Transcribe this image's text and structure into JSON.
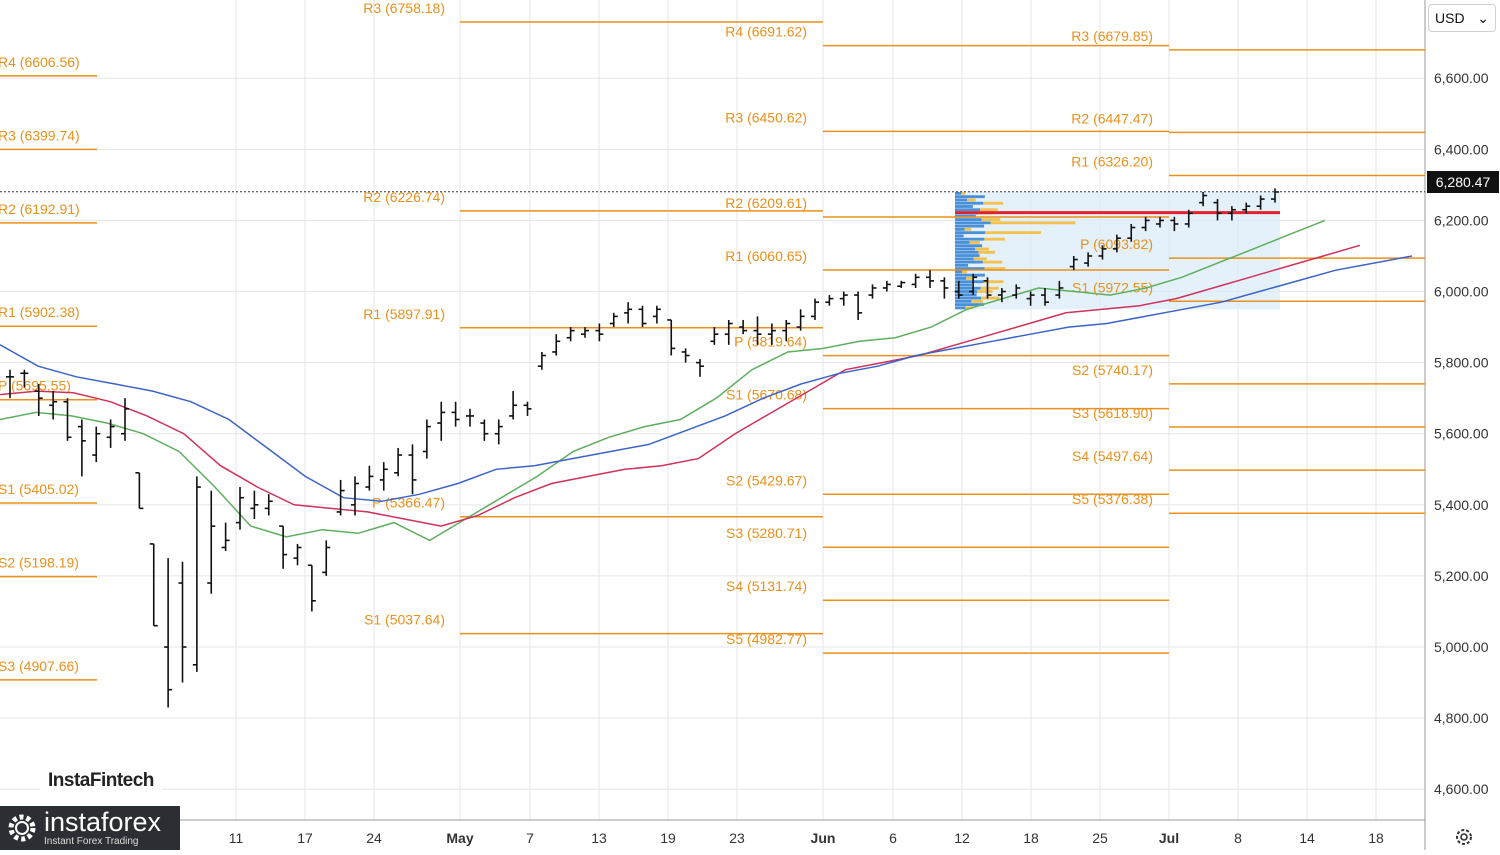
{
  "toolbar": {
    "currency": "USD",
    "currency_caret": "⌄"
  },
  "price_badge": "6,280.47",
  "current_price": 6280.47,
  "brand": {
    "watermark": "InstaFintech",
    "logo_name": "instaforex",
    "logo_tagline": "Instant Forex Trading",
    "logo_icon": "gear-icon"
  },
  "settings_icon": "settings-gear-icon",
  "colors": {
    "pivot": "#e8911c",
    "bars": "#111111",
    "ma_green": "#5fae5f",
    "ma_red": "#d0325a",
    "ma_blue": "#3c64c8",
    "volume_profile_bg": "#dcecf8",
    "vp_blue": "#4a90d9",
    "vp_yellow": "#f2c14e",
    "poc_line": "#e0232e",
    "grid": "#e6e6e6"
  },
  "chart_data": {
    "type": "bar",
    "instrument_quote": "USD",
    "ylim": [
      4550,
      6820
    ],
    "y_ticks": [
      4600,
      4800,
      5000,
      5200,
      5400,
      5600,
      5800,
      6000,
      6200,
      6400,
      6600
    ],
    "y_tick_labels": [
      "4,600.00",
      "4,800.00",
      "5,000.00",
      "5,200.00",
      "5,400.00",
      "5,600.00",
      "5,800.00",
      "6,000.00",
      "6,200.00",
      "6,400.00",
      "6,600.00"
    ],
    "x_labels": [
      "11",
      "17",
      "24",
      "May",
      "7",
      "13",
      "19",
      "23",
      "Jun",
      "6",
      "12",
      "18",
      "25",
      "Jul",
      "8",
      "14",
      "18"
    ],
    "pivot_levels": [
      {
        "period": 1,
        "label": "R4 (6606.56)",
        "value": 6606.56
      },
      {
        "period": 1,
        "label": "R3 (6399.74)",
        "value": 6399.74
      },
      {
        "period": 1,
        "label": "R2 (6192.91)",
        "value": 6192.91
      },
      {
        "period": 1,
        "label": "R1 (5902.38)",
        "value": 5902.38
      },
      {
        "period": 1,
        "label": "P (5695.55)",
        "value": 5695.55
      },
      {
        "period": 1,
        "label": "S1 (5405.02)",
        "value": 5405.02
      },
      {
        "period": 1,
        "label": "S2 (5198.19)",
        "value": 5198.19
      },
      {
        "period": 1,
        "label": "S3 (4907.66)",
        "value": 4907.66
      },
      {
        "period": 2,
        "label": "R3 (6758.18)",
        "value": 6758.18
      },
      {
        "period": 2,
        "label": "R2 (6226.74)",
        "value": 6226.74
      },
      {
        "period": 2,
        "label": "R1 (5897.91)",
        "value": 5897.91
      },
      {
        "period": 2,
        "label": "P (5366.47)",
        "value": 5366.47
      },
      {
        "period": 2,
        "label": "S1 (5037.64)",
        "value": 5037.64
      },
      {
        "period": 3,
        "label": "R4 (6691.62)",
        "value": 6691.62
      },
      {
        "period": 3,
        "label": "R3 (6450.62)",
        "value": 6450.62
      },
      {
        "period": 3,
        "label": "R2 (6209.61)",
        "value": 6209.61
      },
      {
        "period": 3,
        "label": "R1 (6060.65)",
        "value": 6060.65
      },
      {
        "period": 3,
        "label": "P (5819.64)",
        "value": 5819.64
      },
      {
        "period": 3,
        "label": "S1 (5670.68)",
        "value": 5670.68
      },
      {
        "period": 3,
        "label": "S2 (5429.67)",
        "value": 5429.67
      },
      {
        "period": 3,
        "label": "S3 (5280.71)",
        "value": 5280.71
      },
      {
        "period": 3,
        "label": "S4 (5131.74)",
        "value": 5131.74
      },
      {
        "period": 3,
        "label": "S5 (4982.77)",
        "value": 4982.77
      },
      {
        "period": 4,
        "label": "R3 (6679.85)",
        "value": 6679.85
      },
      {
        "period": 4,
        "label": "R2 (6447.47)",
        "value": 6447.47
      },
      {
        "period": 4,
        "label": "R1 (6326.20)",
        "value": 6326.2
      },
      {
        "period": 4,
        "label": "P (6093.82)",
        "value": 6093.82
      },
      {
        "period": 4,
        "label": "S1 (5972.55)",
        "value": 5972.55
      },
      {
        "period": 4,
        "label": "S2 (5740.17)",
        "value": 5740.17
      },
      {
        "period": 4,
        "label": "S3 (5618.90)",
        "value": 5618.9
      },
      {
        "period": 4,
        "label": "S4 (5497.64)",
        "value": 5497.64
      },
      {
        "period": 4,
        "label": "S5 (5376.38)",
        "value": 5376.38
      }
    ],
    "bars": [
      {
        "h": 5780,
        "l": 5700,
        "o": 5760,
        "c": 5760
      },
      {
        "h": 5780,
        "l": 5730,
        "o": 5770,
        "c": 5770
      },
      {
        "h": 5740,
        "l": 5650,
        "o": 5720,
        "c": 5700
      },
      {
        "h": 5720,
        "l": 5640,
        "o": 5680,
        "c": 5690
      },
      {
        "h": 5700,
        "l": 5580,
        "o": 5690,
        "c": 5590
      },
      {
        "h": 5640,
        "l": 5480,
        "o": 5620,
        "c": 5580
      },
      {
        "h": 5620,
        "l": 5520,
        "o": 5540,
        "c": 5600
      },
      {
        "h": 5640,
        "l": 5560,
        "o": 5590,
        "c": 5620
      },
      {
        "h": 5700,
        "l": 5580,
        "o": 5600,
        "c": 5670
      },
      {
        "h": 5490,
        "l": 5390,
        "o": 5490,
        "c": 5390
      },
      {
        "h": 5290,
        "l": 5060,
        "o": 5290,
        "c": 5060
      },
      {
        "h": 5250,
        "l": 4830,
        "o": 5000,
        "c": 4880
      },
      {
        "h": 5240,
        "l": 4900,
        "o": 5180,
        "c": 5000
      },
      {
        "h": 5480,
        "l": 4930,
        "o": 4950,
        "c": 5450
      },
      {
        "h": 5440,
        "l": 5150,
        "o": 5180,
        "c": 5340
      },
      {
        "h": 5350,
        "l": 5270,
        "o": 5280,
        "c": 5300
      },
      {
        "h": 5450,
        "l": 5330,
        "o": 5350,
        "c": 5420
      },
      {
        "h": 5440,
        "l": 5360,
        "o": 5390,
        "c": 5400
      },
      {
        "h": 5430,
        "l": 5370,
        "o": 5390,
        "c": 5410
      },
      {
        "h": 5340,
        "l": 5220,
        "o": 5340,
        "c": 5260
      },
      {
        "h": 5290,
        "l": 5230,
        "o": 5250,
        "c": 5280
      },
      {
        "h": 5230,
        "l": 5100,
        "o": 5230,
        "c": 5130
      },
      {
        "h": 5300,
        "l": 5200,
        "o": 5210,
        "c": 5280
      },
      {
        "h": 5470,
        "l": 5370,
        "o": 5380,
        "c": 5440
      },
      {
        "h": 5480,
        "l": 5370,
        "o": 5400,
        "c": 5460
      },
      {
        "h": 5510,
        "l": 5440,
        "o": 5450,
        "c": 5480
      },
      {
        "h": 5520,
        "l": 5440,
        "o": 5470,
        "c": 5500
      },
      {
        "h": 5560,
        "l": 5480,
        "o": 5490,
        "c": 5540
      },
      {
        "h": 5570,
        "l": 5430,
        "o": 5540,
        "c": 5470
      },
      {
        "h": 5640,
        "l": 5530,
        "o": 5550,
        "c": 5620
      },
      {
        "h": 5690,
        "l": 5580,
        "o": 5630,
        "c": 5660
      },
      {
        "h": 5690,
        "l": 5620,
        "o": 5660,
        "c": 5640
      },
      {
        "h": 5670,
        "l": 5620,
        "o": 5650,
        "c": 5650
      },
      {
        "h": 5640,
        "l": 5580,
        "o": 5630,
        "c": 5600
      },
      {
        "h": 5640,
        "l": 5570,
        "o": 5600,
        "c": 5620
      },
      {
        "h": 5720,
        "l": 5640,
        "o": 5650,
        "c": 5680
      },
      {
        "h": 5690,
        "l": 5650,
        "o": 5680,
        "c": 5670
      },
      {
        "h": 5830,
        "l": 5780,
        "o": 5790,
        "c": 5820
      },
      {
        "h": 5880,
        "l": 5820,
        "o": 5830,
        "c": 5860
      },
      {
        "h": 5900,
        "l": 5860,
        "o": 5870,
        "c": 5890
      },
      {
        "h": 5900,
        "l": 5870,
        "o": 5880,
        "c": 5890
      },
      {
        "h": 5910,
        "l": 5860,
        "o": 5890,
        "c": 5880
      },
      {
        "h": 5940,
        "l": 5900,
        "o": 5910,
        "c": 5930
      },
      {
        "h": 5970,
        "l": 5910,
        "o": 5940,
        "c": 5950
      },
      {
        "h": 5960,
        "l": 5900,
        "o": 5950,
        "c": 5910
      },
      {
        "h": 5960,
        "l": 5910,
        "o": 5930,
        "c": 5950
      },
      {
        "h": 5920,
        "l": 5820,
        "o": 5920,
        "c": 5840
      },
      {
        "h": 5840,
        "l": 5800,
        "o": 5830,
        "c": 5820
      },
      {
        "h": 5810,
        "l": 5760,
        "o": 5800,
        "c": 5790
      },
      {
        "h": 5900,
        "l": 5850,
        "o": 5860,
        "c": 5880
      },
      {
        "h": 5920,
        "l": 5850,
        "o": 5880,
        "c": 5910
      },
      {
        "h": 5920,
        "l": 5880,
        "o": 5900,
        "c": 5890
      },
      {
        "h": 5930,
        "l": 5850,
        "o": 5890,
        "c": 5880
      },
      {
        "h": 5910,
        "l": 5850,
        "o": 5880,
        "c": 5890
      },
      {
        "h": 5920,
        "l": 5860,
        "o": 5890,
        "c": 5910
      },
      {
        "h": 5950,
        "l": 5890,
        "o": 5900,
        "c": 5930
      },
      {
        "h": 5980,
        "l": 5920,
        "o": 5930,
        "c": 5970
      },
      {
        "h": 5990,
        "l": 5960,
        "o": 5970,
        "c": 5980
      },
      {
        "h": 6000,
        "l": 5960,
        "o": 5980,
        "c": 5990
      },
      {
        "h": 6000,
        "l": 5920,
        "o": 5990,
        "c": 5940
      },
      {
        "h": 6020,
        "l": 5980,
        "o": 5990,
        "c": 6010
      },
      {
        "h": 6030,
        "l": 6000,
        "o": 6010,
        "c": 6020
      },
      {
        "h": 6030,
        "l": 6010,
        "o": 6015,
        "c": 6025
      },
      {
        "h": 6050,
        "l": 6010,
        "o": 6020,
        "c": 6040
      },
      {
        "h": 6060,
        "l": 6010,
        "o": 6040,
        "c": 6030
      },
      {
        "h": 6040,
        "l": 5980,
        "o": 6030,
        "c": 6010
      },
      {
        "h": 6030,
        "l": 5980,
        "o": 6000,
        "c": 5990
      },
      {
        "h": 6050,
        "l": 5990,
        "o": 6000,
        "c": 6040
      },
      {
        "h": 6040,
        "l": 5980,
        "o": 6030,
        "c": 5990
      },
      {
        "h": 6010,
        "l": 5970,
        "o": 5990,
        "c": 6000
      },
      {
        "h": 6020,
        "l": 5980,
        "o": 5990,
        "c": 6010
      },
      {
        "h": 6000,
        "l": 5960,
        "o": 5980,
        "c": 5990
      },
      {
        "h": 6010,
        "l": 5960,
        "o": 5990,
        "c": 5970
      },
      {
        "h": 6030,
        "l": 5980,
        "o": 5990,
        "c": 6010
      },
      {
        "h": 6100,
        "l": 6060,
        "o": 6070,
        "c": 6090
      },
      {
        "h": 6110,
        "l": 6070,
        "o": 6080,
        "c": 6100
      },
      {
        "h": 6130,
        "l": 6090,
        "o": 6100,
        "c": 6120
      },
      {
        "h": 6160,
        "l": 6110,
        "o": 6120,
        "c": 6150
      },
      {
        "h": 6190,
        "l": 6140,
        "o": 6150,
        "c": 6180
      },
      {
        "h": 6210,
        "l": 6170,
        "o": 6180,
        "c": 6200
      },
      {
        "h": 6210,
        "l": 6180,
        "o": 6190,
        "c": 6200
      },
      {
        "h": 6210,
        "l": 6170,
        "o": 6200,
        "c": 6190
      },
      {
        "h": 6230,
        "l": 6180,
        "o": 6190,
        "c": 6220
      },
      {
        "h": 6280,
        "l": 6240,
        "o": 6250,
        "c": 6270
      },
      {
        "h": 6260,
        "l": 6200,
        "o": 6250,
        "c": 6220
      },
      {
        "h": 6240,
        "l": 6200,
        "o": 6220,
        "c": 6230
      },
      {
        "h": 6250,
        "l": 6220,
        "o": 6230,
        "c": 6240
      },
      {
        "h": 6270,
        "l": 6230,
        "o": 6240,
        "c": 6260
      },
      {
        "h": 6290,
        "l": 6250,
        "o": 6260,
        "c": 6280
      }
    ],
    "ma_green": [
      5640,
      5660,
      5650,
      5630,
      5600,
      5550,
      5450,
      5340,
      5310,
      5330,
      5320,
      5350,
      5300,
      5360,
      5420,
      5480,
      5550,
      5590,
      5620,
      5640,
      5700,
      5780,
      5830,
      5840,
      5860,
      5870,
      5900,
      5950,
      5980,
      6010,
      6000,
      5990,
      6010,
      6040,
      6080,
      6120,
      6160,
      6200
    ],
    "ma_red": [
      5710,
      5720,
      5715,
      5690,
      5650,
      5600,
      5510,
      5450,
      5400,
      5390,
      5380,
      5360,
      5340,
      5370,
      5420,
      5460,
      5480,
      5500,
      5510,
      5530,
      5600,
      5660,
      5720,
      5780,
      5800,
      5820,
      5850,
      5880,
      5910,
      5940,
      5950,
      5960,
      5980,
      6010,
      6040,
      6070,
      6100,
      6130
    ],
    "ma_blue": [
      5850,
      5790,
      5760,
      5740,
      5720,
      5690,
      5640,
      5560,
      5480,
      5420,
      5410,
      5430,
      5460,
      5500,
      5510,
      5530,
      5550,
      5570,
      5610,
      5650,
      5700,
      5740,
      5770,
      5790,
      5820,
      5840,
      5860,
      5880,
      5900,
      5910,
      5930,
      5950,
      5970,
      6000,
      6030,
      6060,
      6080,
      6100
    ]
  }
}
